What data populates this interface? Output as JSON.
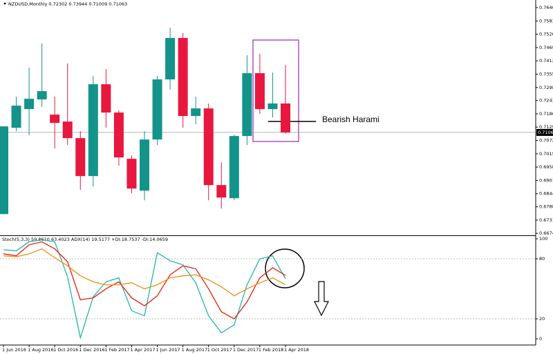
{
  "chart_data": [
    {
      "type": "candlestick",
      "symbol": "NZDUSD,Monthly",
      "categories": [
        "1 Jun 2016",
        null,
        "1 Aug 2016",
        null,
        "1 Oct 2016",
        null,
        "1 Dec 2016",
        null,
        "1 Feb 2017",
        null,
        "1 Apr 2017",
        null,
        "1 Jun 2017",
        null,
        "1 Aug 2017",
        null,
        "1 Oct 2017",
        null,
        "1 Dec 2017",
        null,
        "1 Feb 2018",
        null,
        "1 Apr 2018"
      ],
      "open": [
        0.67569,
        0.71263,
        0.72061,
        0.72475,
        0.71825,
        0.71529,
        0.7082,
        0.69195,
        0.73125,
        0.71914,
        0.69934,
        0.68573,
        0.70761,
        0.73332,
        0.75105,
        0.71766,
        0.72091,
        0.6881,
        0.68249,
        0.70909,
        0.73598,
        0.72061,
        0.72302
      ],
      "high": [
        0.71322,
        0.72593,
        0.73834,
        0.74868,
        0.72593,
        0.74012,
        0.71116,
        0.7348,
        0.73775,
        0.72002,
        0.70081,
        0.71116,
        0.7348,
        0.75548,
        0.75312,
        0.72593,
        0.72298,
        0.69785,
        0.70968,
        0.74366,
        0.74425,
        0.73627,
        0.73944
      ],
      "low": [
        0.67569,
        0.71116,
        0.70938,
        0.7215,
        0.70377,
        0.70525,
        0.68603,
        0.68751,
        0.71263,
        0.69638,
        0.68456,
        0.6816,
        0.70525,
        0.72889,
        0.71263,
        0.71411,
        0.6816,
        0.67806,
        0.6816,
        0.70525,
        0.71855,
        0.71707,
        0.71009
      ],
      "close": [
        0.71322,
        0.72209,
        0.72504,
        0.7283,
        0.7147,
        0.7082,
        0.69195,
        0.73125,
        0.71914,
        0.69993,
        0.68662,
        0.70761,
        0.73332,
        0.75105,
        0.71766,
        0.72091,
        0.6881,
        0.68278,
        0.70909,
        0.73598,
        0.72061,
        0.72302,
        0.71063
      ],
      "up_color": "#14938a",
      "down_color": "#e8173e",
      "ylim": [
        0.6669,
        0.7673
      ],
      "yticks": [
        0.76405,
        0.75835,
        0.75265,
        0.74695,
        0.74125,
        0.73555,
        0.72985,
        {
          "value": 0.7243,
          "label": "0.72430"
        },
        0.7186,
        {
          "value": 0.7129,
          "label": "0.71290"
        },
        {
          "value": 0.7072,
          "label": "0.70720"
        },
        {
          "value": 0.7015,
          "label": "0.70150"
        },
        {
          "value": 0.6958,
          "label": "0.69580"
        },
        {
          "value": 0.6901,
          "label": "0.69010"
        },
        {
          "value": 0.6844,
          "label": "0.68440"
        },
        {
          "value": 0.6788,
          "label": "0.67880"
        },
        {
          "value": 0.6731,
          "label": "0.67310"
        },
        0.66745
      ],
      "annotation": "Bearish Harami"
    },
    {
      "type": "line",
      "indicator_label": "Stoch(5,3,3) 59.8610 63.4023  ADX(14) 19.5177 +DI:18.7537 -DI:14.0659",
      "series": [
        {
          "color": "#22b5b0",
          "values": [
            89,
            88,
            97,
            99,
            97,
            62,
            1,
            42,
            57,
            61,
            28,
            23,
            86,
            78,
            74,
            56,
            23,
            6,
            14,
            54,
            80,
            83,
            59.86
          ]
        },
        {
          "color": "#ee1c0e",
          "values": [
            85,
            83,
            94,
            97,
            90,
            77,
            39,
            41,
            50,
            57,
            41,
            33,
            43,
            64,
            73,
            70,
            50,
            27,
            20,
            37,
            61,
            71,
            63.4
          ]
        },
        {
          "color": "#f28c0e",
          "values": [
            83,
            82,
            85,
            90,
            81,
            73,
            63,
            57,
            54,
            54,
            56,
            50,
            54,
            61,
            63,
            64,
            59,
            52,
            43,
            50,
            56,
            61,
            54
          ]
        }
      ],
      "ylim": [
        -6.2,
        102.8
      ],
      "yticks": [
        100,
        80,
        20,
        0
      ],
      "levels": [
        80,
        20
      ]
    }
  ]
}
